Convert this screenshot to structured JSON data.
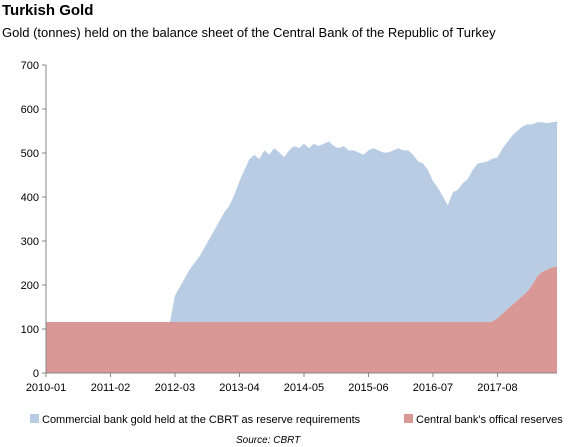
{
  "chart_data": {
    "type": "area",
    "stacked": true,
    "title": "Turkish Gold",
    "subtitle": "Gold (tonnes) held on the balance sheet of the Central Bank of the Republic of Turkey",
    "source": "Source: CBRT",
    "xlabel": "",
    "ylabel": "",
    "ylim": [
      0,
      700
    ],
    "yticks": [
      0,
      100,
      200,
      300,
      400,
      500,
      600,
      700
    ],
    "xticks": [
      "2010-01",
      "2011-02",
      "2012-03",
      "2013-04",
      "2014-05",
      "2015-06",
      "2016-07",
      "2017-08"
    ],
    "grid": false,
    "legend_position": "bottom",
    "x": [
      "2010-01",
      "2010-03",
      "2010-05",
      "2010-07",
      "2010-09",
      "2010-11",
      "2011-01",
      "2011-03",
      "2011-05",
      "2011-07",
      "2011-09",
      "2011-11",
      "2011-12",
      "2012-01",
      "2012-02",
      "2012-03",
      "2012-04",
      "2012-05",
      "2012-06",
      "2012-07",
      "2012-08",
      "2012-09",
      "2012-10",
      "2012-11",
      "2012-12",
      "2013-01",
      "2013-02",
      "2013-03",
      "2013-04",
      "2013-05",
      "2013-06",
      "2013-07",
      "2013-08",
      "2013-09",
      "2013-10",
      "2013-11",
      "2013-12",
      "2014-01",
      "2014-02",
      "2014-03",
      "2014-04",
      "2014-05",
      "2014-06",
      "2014-07",
      "2014-08",
      "2014-09",
      "2014-10",
      "2014-11",
      "2014-12",
      "2015-01",
      "2015-02",
      "2015-03",
      "2015-04",
      "2015-05",
      "2015-06",
      "2015-07",
      "2015-08",
      "2015-09",
      "2015-10",
      "2015-11",
      "2015-12",
      "2016-01",
      "2016-02",
      "2016-03",
      "2016-04",
      "2016-05",
      "2016-06",
      "2016-07",
      "2016-08",
      "2016-09",
      "2016-10",
      "2016-11",
      "2016-12",
      "2017-01",
      "2017-02",
      "2017-03",
      "2017-04",
      "2017-05",
      "2017-06",
      "2017-07",
      "2017-08",
      "2017-09",
      "2017-10",
      "2017-11",
      "2017-12",
      "2018-01",
      "2018-02",
      "2018-03",
      "2018-04",
      "2018-05",
      "2018-06",
      "2018-07",
      "2018-08"
    ],
    "series": [
      {
        "name": "Central bank's offical reserves",
        "color": "#d99795",
        "values": [
          116,
          116,
          116,
          116,
          116,
          116,
          116,
          116,
          116,
          116,
          116,
          116,
          116,
          116,
          116,
          116,
          116,
          116,
          116,
          116,
          116,
          116,
          116,
          116,
          116,
          116,
          116,
          116,
          116,
          116,
          116,
          116,
          116,
          116,
          116,
          116,
          116,
          116,
          116,
          116,
          116,
          116,
          116,
          116,
          116,
          116,
          116,
          116,
          116,
          116,
          116,
          116,
          116,
          116,
          116,
          116,
          116,
          116,
          116,
          116,
          116,
          116,
          116,
          116,
          116,
          116,
          116,
          116,
          116,
          116,
          116,
          116,
          116,
          116,
          116,
          116,
          116,
          116,
          116,
          117,
          125,
          135,
          145,
          155,
          165,
          175,
          185,
          200,
          220,
          230,
          235,
          240,
          242
        ]
      },
      {
        "name": "Commercial bank gold held at the CBRT as reserve requirements",
        "color": "#b8cce4",
        "values": [
          0,
          0,
          0,
          0,
          0,
          0,
          0,
          0,
          0,
          0,
          0,
          0,
          0,
          0,
          0,
          60,
          80,
          100,
          120,
          135,
          150,
          170,
          190,
          210,
          230,
          250,
          265,
          290,
          320,
          345,
          370,
          380,
          370,
          390,
          380,
          395,
          385,
          375,
          390,
          400,
          395,
          405,
          395,
          405,
          400,
          405,
          410,
          400,
          395,
          400,
          390,
          390,
          385,
          380,
          390,
          395,
          390,
          385,
          385,
          390,
          395,
          390,
          390,
          380,
          365,
          360,
          345,
          320,
          305,
          285,
          265,
          295,
          300,
          315,
          325,
          345,
          360,
          362,
          365,
          370,
          365,
          375,
          380,
          385,
          385,
          385,
          380,
          365,
          350,
          340,
          333,
          330,
          330
        ]
      }
    ]
  }
}
